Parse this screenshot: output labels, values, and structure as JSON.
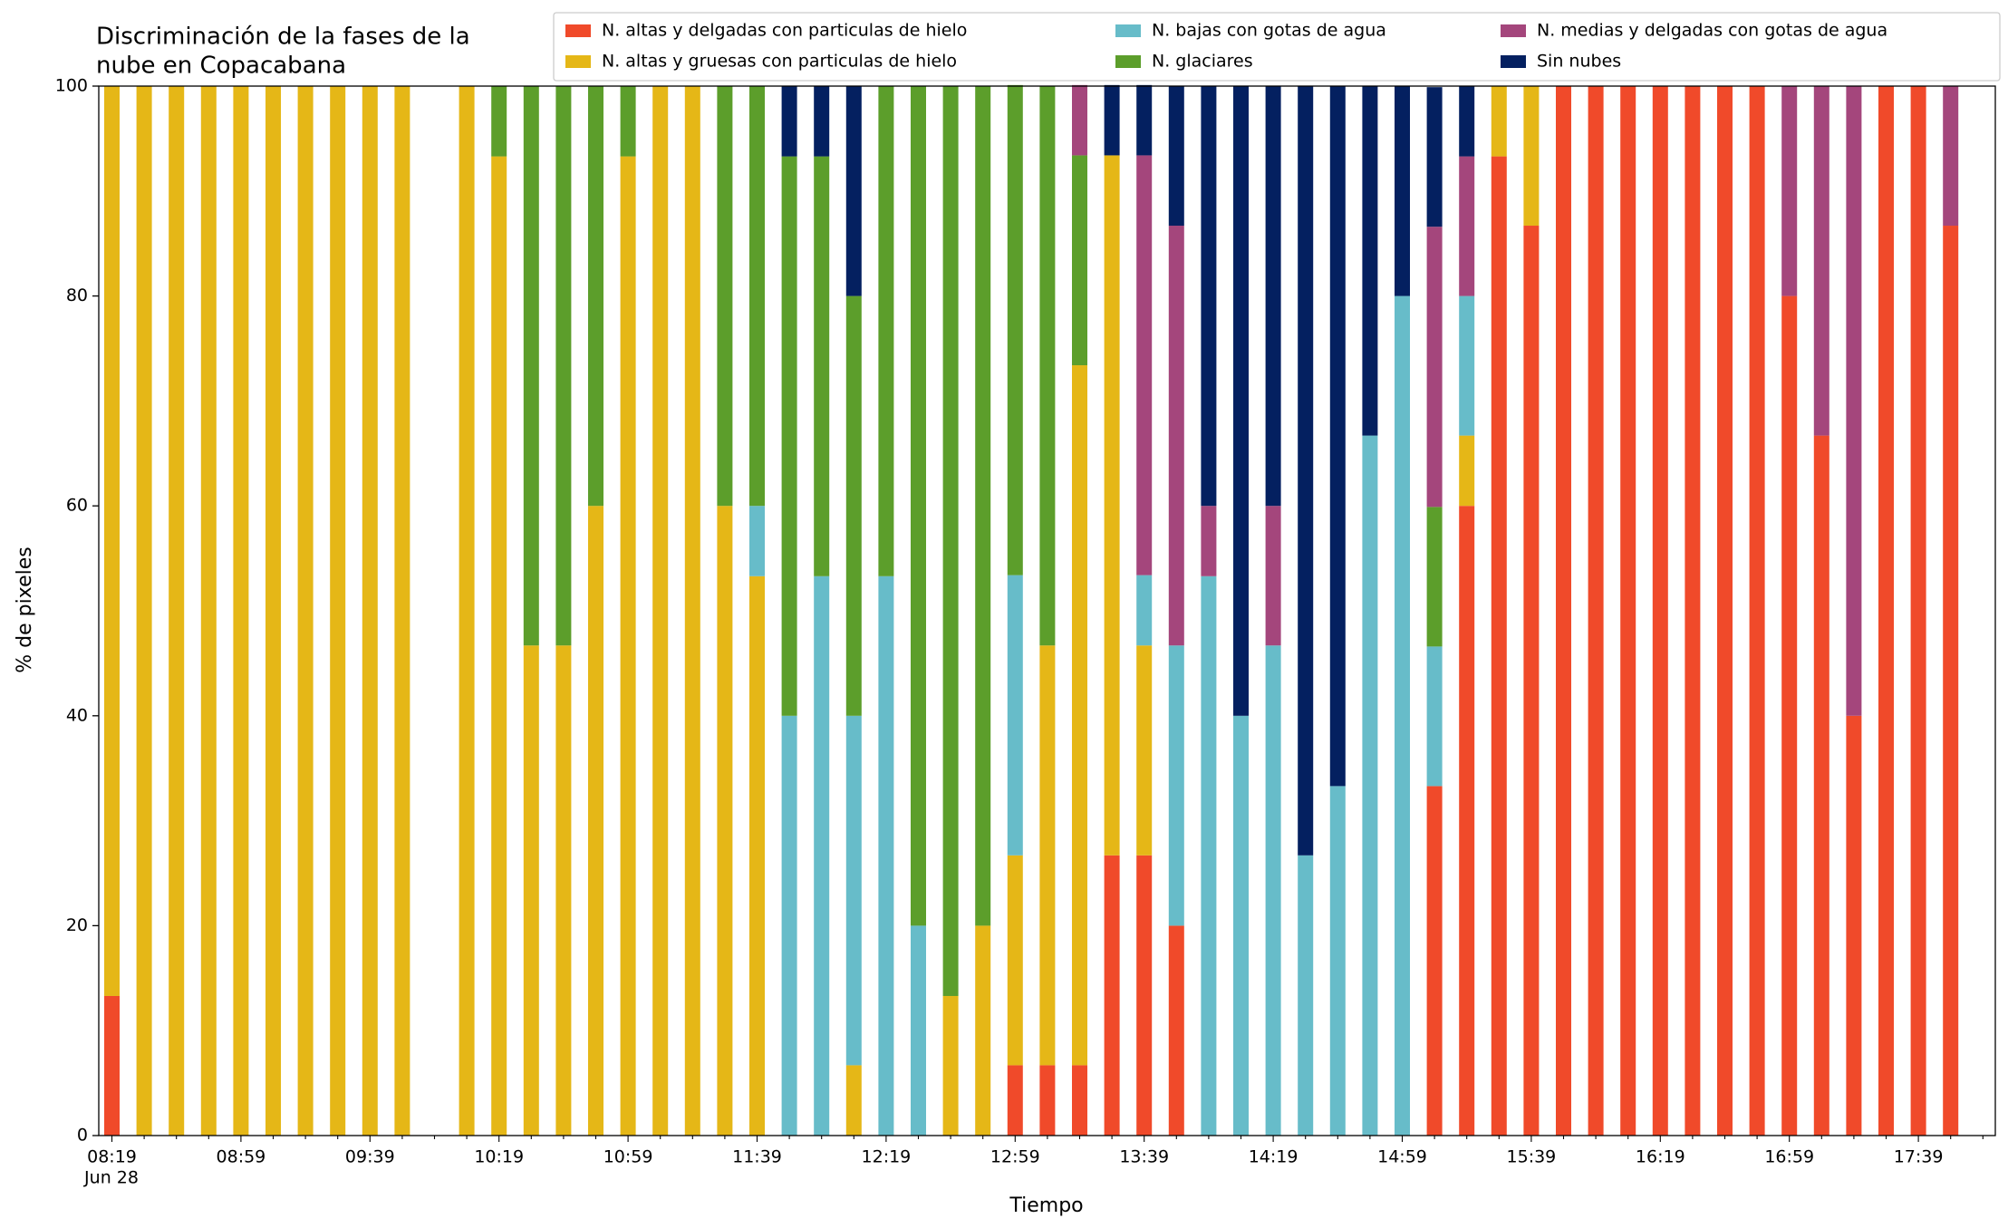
{
  "chart_data": {
    "type": "stacked_bar",
    "title": [
      "Discriminación de la fases de la",
      "nube en Copacabana"
    ],
    "x_label": "Tiempo",
    "y_label": "% de pixeles",
    "date": "Jun 28",
    "categories": [
      "08:19",
      null,
      null,
      null,
      "08:59",
      null,
      null,
      null,
      "09:39",
      null,
      null,
      null,
      "10:19",
      null,
      null,
      null,
      "10:59",
      null,
      null,
      null,
      "11:39",
      null,
      null,
      null,
      "12:19",
      null,
      null,
      null,
      "12:59",
      null,
      null,
      null,
      "13:39",
      null,
      null,
      null,
      "14:19",
      null,
      null,
      null,
      "14:59",
      null,
      null,
      null,
      "15:39",
      null,
      null,
      null,
      "16:19",
      null,
      null,
      null,
      "16:59",
      null,
      null,
      null,
      "17:39",
      null
    ],
    "ylim": [
      0,
      100
    ],
    "yticks": [
      0,
      20,
      40,
      60,
      80,
      100
    ],
    "grid": false,
    "legend": "top-right",
    "series": [
      {
        "name": "N. altas y delgadas con particulas de hielo",
        "color": "#f04a2a",
        "values": [
          13.3,
          0,
          0,
          0,
          0,
          0,
          0,
          0,
          0,
          0,
          null,
          0,
          0,
          0,
          0,
          0,
          0,
          0,
          0,
          0,
          0,
          0,
          0,
          0,
          0,
          0,
          0,
          0,
          6.7,
          6.7,
          6.7,
          26.7,
          26.7,
          20,
          0,
          0,
          0,
          0,
          0,
          0,
          0,
          33.3,
          60,
          93.3,
          86.7,
          100,
          100,
          100,
          100,
          100,
          100,
          100,
          80,
          66.7,
          40,
          100,
          100,
          86.7
        ]
      },
      {
        "name": "N. altas y gruesas con particulas de hielo",
        "color": "#e5b717",
        "values": [
          86.7,
          100,
          100,
          100,
          100,
          100,
          100,
          100,
          100,
          100,
          null,
          100,
          93.3,
          46.7,
          46.7,
          60,
          93.3,
          100,
          100,
          60,
          53.3,
          0,
          0,
          6.7,
          0,
          0,
          13.3,
          20,
          20,
          40,
          66.7,
          66.7,
          20,
          0,
          0,
          0,
          0,
          0,
          0,
          0,
          0,
          0,
          6.7,
          6.7,
          13.3,
          0,
          0,
          0,
          0,
          0,
          0,
          0,
          0,
          0,
          0,
          0,
          0,
          0
        ]
      },
      {
        "name": "N. bajas con gotas de agua",
        "color": "#67bcc9",
        "values": [
          0,
          0,
          0,
          0,
          0,
          0,
          0,
          0,
          0,
          0,
          null,
          0,
          0,
          0,
          0,
          0,
          0,
          0,
          0,
          0,
          6.7,
          40,
          53.3,
          33.3,
          53.3,
          20,
          0,
          0,
          26.7,
          0,
          0,
          0,
          6.7,
          26.7,
          53.3,
          40,
          46.7,
          26.7,
          33.3,
          66.7,
          80,
          13.3,
          13.3,
          0,
          0,
          0,
          0,
          0,
          0,
          0,
          0,
          0,
          0,
          0,
          0,
          0,
          0,
          0
        ]
      },
      {
        "name": "N. glaciares",
        "color": "#5c9e2b",
        "values": [
          0,
          0,
          0,
          0,
          0,
          0,
          0,
          0,
          0,
          0,
          null,
          0,
          6.7,
          53.3,
          53.3,
          40,
          6.7,
          0,
          0,
          40,
          40,
          53.3,
          40,
          40,
          46.7,
          80,
          86.7,
          80,
          46.7,
          53.3,
          20,
          0,
          0,
          0,
          0,
          0,
          0,
          0,
          0,
          0,
          0,
          13.3,
          0,
          0,
          0,
          0,
          0,
          0,
          0,
          0,
          0,
          0,
          0,
          0,
          0,
          0,
          0,
          0
        ]
      },
      {
        "name": "N. medias y delgadas con gotas de agua",
        "color": "#a4467c",
        "values": [
          0,
          0,
          0,
          0,
          0,
          0,
          0,
          0,
          0,
          0,
          null,
          0,
          0,
          0,
          0,
          0,
          0,
          0,
          0,
          0,
          0,
          0,
          0,
          0,
          0,
          0,
          0,
          0,
          0,
          0,
          6.7,
          0,
          40,
          40,
          6.7,
          0,
          13.3,
          0,
          0,
          0,
          0,
          26.7,
          13.3,
          0,
          0,
          0,
          0,
          0,
          0,
          0,
          0,
          0,
          20,
          33.3,
          60,
          0,
          0,
          13.3
        ]
      },
      {
        "name": "Sin nubes",
        "color": "#042060",
        "values": [
          0,
          0,
          0,
          0,
          0,
          0,
          0,
          0,
          0,
          0,
          null,
          0,
          0,
          0,
          0,
          0,
          0,
          0,
          0,
          0,
          0,
          6.7,
          6.7,
          20,
          0,
          0,
          0,
          0,
          0,
          0,
          0,
          6.7,
          6.7,
          13.3,
          40,
          60,
          40,
          73.3,
          66.7,
          33.3,
          20,
          13.3,
          6.7,
          0,
          0,
          0,
          0,
          0,
          0,
          0,
          0,
          0,
          0,
          0,
          0,
          0,
          0,
          0
        ]
      }
    ]
  }
}
